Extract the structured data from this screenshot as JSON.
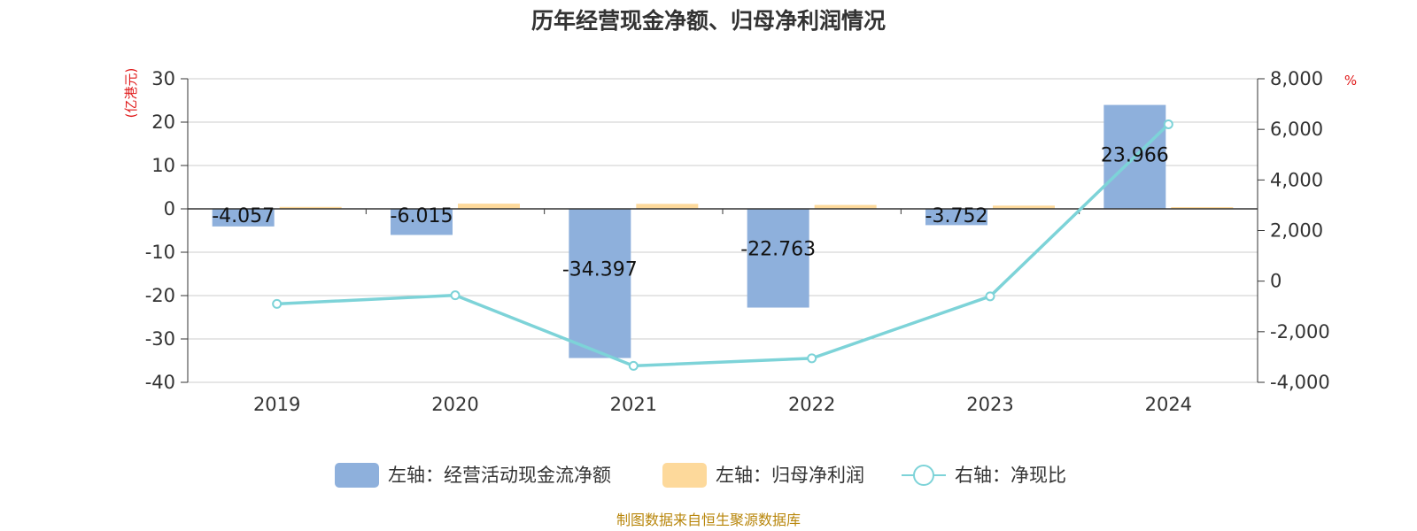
{
  "chart_data": {
    "type": "bar",
    "title": "历年经营现金净额、归母净利润情况",
    "categories": [
      "2019",
      "2020",
      "2021",
      "2022",
      "2023",
      "2024"
    ],
    "left_axis": {
      "unit": "(亿港元)",
      "ylim": [
        -40,
        30
      ],
      "ticks": [
        "30",
        "20",
        "10",
        "0",
        "-10",
        "-20",
        "-30",
        "-40"
      ]
    },
    "right_axis": {
      "unit": "%",
      "ylim": [
        -4000,
        8000
      ],
      "ticks": [
        "8,000",
        "6,000",
        "4,000",
        "2,000",
        "0",
        "-2,000",
        "-4,000"
      ]
    },
    "series": [
      {
        "name": "左轴：经营活动现金流净额",
        "type": "bar",
        "axis": "left",
        "color": "#8eb0dc",
        "values": [
          -4.057,
          -6.015,
          -34.397,
          -22.763,
          -3.752,
          23.966
        ],
        "labels": [
          "-4.057",
          "-6.015",
          "-34.397",
          "-22.763",
          "-3.752",
          "23.966"
        ]
      },
      {
        "name": "左轴：归母净利润",
        "type": "bar",
        "axis": "left",
        "color": "#fdd99b",
        "values": [
          0.45,
          1.2,
          1.15,
          0.9,
          0.75,
          0.4
        ]
      },
      {
        "name": "右轴：净现比",
        "type": "line",
        "axis": "right",
        "color": "#7dd3d8",
        "values": [
          -900,
          -560,
          -3350,
          -3050,
          -600,
          6200
        ]
      }
    ],
    "grid": true,
    "legend_position": "bottom"
  },
  "source_note": "制图数据来自恒生聚源数据库"
}
